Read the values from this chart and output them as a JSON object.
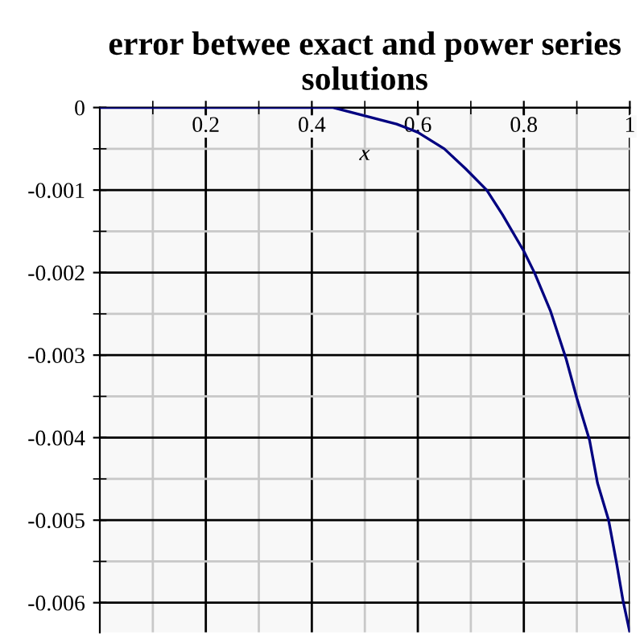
{
  "chart_data": {
    "type": "line",
    "title": "error betwee exact and power series\nsolutions",
    "xlabel": "x",
    "x": [
      0,
      0.1,
      0.2,
      0.3,
      0.35,
      0.44,
      0.5,
      0.56,
      0.6,
      0.65,
      0.69,
      0.73,
      0.76,
      0.8,
      0.82,
      0.85,
      0.88,
      0.9,
      0.924,
      0.939,
      0.96,
      0.975,
      0.987,
      1.0
    ],
    "series": [
      {
        "color": "#000080",
        "values": [
          0,
          0,
          0,
          0,
          0,
          0,
          -0.0001,
          -0.0002,
          -0.0003,
          -0.0005,
          -0.00074,
          -0.001,
          -0.0013,
          -0.00174,
          -0.002,
          -0.00246,
          -0.00305,
          -0.00352,
          -0.00403,
          -0.00455,
          -0.005,
          -0.00552,
          -0.00597,
          -0.00636
        ]
      }
    ],
    "xlim": [
      0,
      1
    ],
    "ylim": [
      -0.00636,
      0
    ],
    "xticks": [
      0.2,
      0.4,
      0.6,
      0.8,
      1
    ],
    "yticks": [
      0,
      -0.001,
      -0.002,
      -0.003,
      -0.004,
      -0.005,
      -0.006
    ],
    "grid": true,
    "marker": "none",
    "line_style": "solid"
  }
}
